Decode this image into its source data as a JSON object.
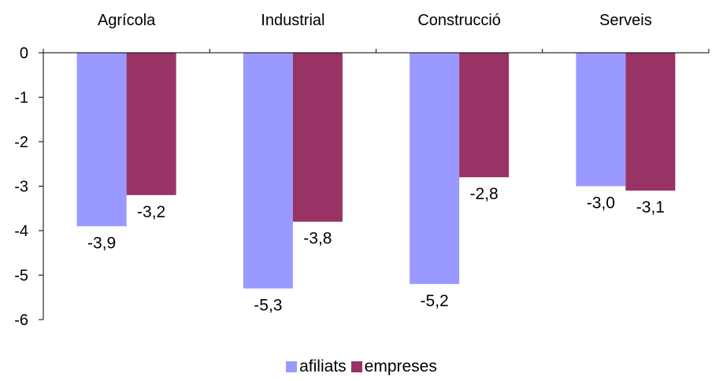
{
  "chart_data": {
    "type": "bar",
    "categories": [
      "Agrícola",
      "Industrial",
      "Construcció",
      "Serveis"
    ],
    "series": [
      {
        "name": "afiliats",
        "color": "#9999ff",
        "values": [
          -3.9,
          -5.3,
          -5.2,
          -3.0
        ],
        "labels": [
          "-3,9",
          "-5,3",
          "-5,2",
          "-3,0"
        ]
      },
      {
        "name": "empreses",
        "color": "#993366",
        "values": [
          -3.2,
          -3.8,
          -2.8,
          -3.1
        ],
        "labels": [
          "-3,2",
          "-3,8",
          "-2,8",
          "-3,1"
        ]
      }
    ],
    "ylim": [
      -6,
      0
    ],
    "yticks": [
      0,
      -1,
      -2,
      -3,
      -4,
      -5,
      -6
    ],
    "ytick_labels": [
      "0",
      "-1",
      "-2",
      "-3",
      "-4",
      "-5",
      "-6"
    ],
    "category_axis_position": "top",
    "grid": false,
    "legend_position": "bottom"
  }
}
